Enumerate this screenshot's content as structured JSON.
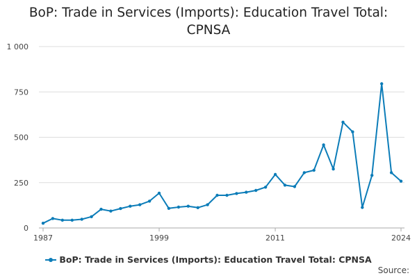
{
  "title_line1": "BoP: Trade in Services (Imports): Education Travel Total:",
  "title_line2": "CPNSA",
  "source_label": "Source:",
  "colors": {
    "series": "#0b7cb8",
    "grid": "#dddddd",
    "axis": "#aaaaaa"
  },
  "chart_data": {
    "type": "line",
    "title": "BoP: Trade in Services (Imports): Education Travel Total: CPNSA",
    "xlabel": "",
    "ylabel": "",
    "x": [
      1987,
      1988,
      1989,
      1990,
      1991,
      1992,
      1993,
      1994,
      1995,
      1996,
      1997,
      1998,
      1999,
      2000,
      2001,
      2002,
      2003,
      2004,
      2005,
      2006,
      2007,
      2008,
      2009,
      2010,
      2011,
      2012,
      2013,
      2014,
      2015,
      2016,
      2017,
      2018,
      2019,
      2020,
      2021,
      2022,
      2023,
      2024
    ],
    "series": [
      {
        "name": "BoP: Trade in Services (Imports): Education Travel Total: CPNSA",
        "values": [
          26,
          52,
          43,
          43,
          48,
          62,
          103,
          93,
          107,
          120,
          128,
          148,
          192,
          108,
          115,
          120,
          112,
          128,
          180,
          180,
          190,
          197,
          207,
          225,
          295,
          236,
          228,
          305,
          318,
          458,
          325,
          583,
          530,
          113,
          290,
          795,
          305,
          258
        ]
      }
    ],
    "xlim": [
      1987,
      2024
    ],
    "ylim": [
      0,
      1000
    ],
    "x_ticks": [
      1987,
      1999,
      2011,
      2024
    ],
    "x_tick_labels": [
      "1987",
      "1999",
      "2011",
      "2024"
    ],
    "y_ticks": [
      0,
      250,
      500,
      750,
      1000
    ],
    "y_tick_labels": [
      "0",
      "250",
      "500",
      "750",
      "1 000"
    ],
    "grid": "horizontal",
    "legend_position": "bottom-center"
  }
}
